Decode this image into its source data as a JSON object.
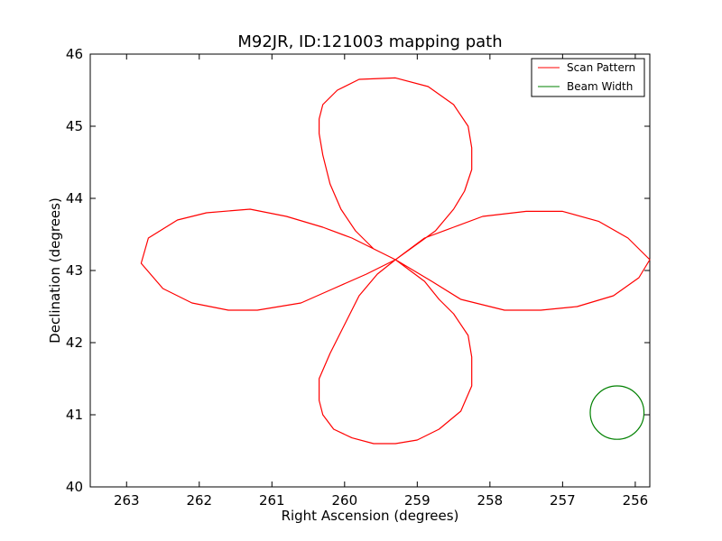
{
  "chart_data": {
    "type": "line",
    "title": "M92JR, ID:121003 mapping path",
    "xlabel": "Right Ascension (degrees)",
    "ylabel": "Declination (degrees)",
    "xlim": [
      263.5,
      255.8
    ],
    "ylim": [
      40,
      46
    ],
    "x_inverted": true,
    "xticks": [
      263,
      262,
      261,
      260,
      259,
      258,
      257,
      256
    ],
    "yticks": [
      40,
      41,
      42,
      43,
      44,
      45,
      46
    ],
    "grid": false,
    "legend_position": "top-right",
    "series": [
      {
        "name": "Scan Pattern",
        "color": "#ff0000",
        "kind": "line",
        "x": [
          259.3,
          259.6,
          259.85,
          260.05,
          260.2,
          260.3,
          260.35,
          260.35,
          260.3,
          260.1,
          259.8,
          259.3,
          258.85,
          258.5,
          258.3,
          258.25,
          258.25,
          258.35,
          258.5,
          258.75,
          259.3,
          259.7,
          260.15,
          260.6,
          261.2,
          261.6,
          262.1,
          262.5,
          262.8,
          262.7,
          262.3,
          261.9,
          261.3,
          260.8,
          260.3,
          259.9,
          259.3,
          258.9,
          258.5,
          258.1,
          257.5,
          257.0,
          256.5,
          256.1,
          255.8,
          255.95,
          256.3,
          256.8,
          257.3,
          257.8,
          258.4,
          258.8,
          259.3,
          259.55,
          259.8,
          260.0,
          260.2,
          260.35,
          260.35,
          260.3,
          260.15,
          259.9,
          259.6,
          259.3,
          259.0,
          258.7,
          258.4,
          258.25,
          258.25,
          258.3,
          258.5,
          258.7,
          258.9,
          259.3
        ],
        "y": [
          43.15,
          43.3,
          43.55,
          43.85,
          44.2,
          44.6,
          44.9,
          45.1,
          45.3,
          45.5,
          45.65,
          45.67,
          45.55,
          45.3,
          45.0,
          44.7,
          44.4,
          44.1,
          43.85,
          43.55,
          43.15,
          42.95,
          42.75,
          42.55,
          42.45,
          42.45,
          42.55,
          42.75,
          43.1,
          43.45,
          43.7,
          43.8,
          43.85,
          43.75,
          43.6,
          43.45,
          43.15,
          43.45,
          43.6,
          43.75,
          43.82,
          43.82,
          43.68,
          43.45,
          43.15,
          42.9,
          42.65,
          42.5,
          42.45,
          42.45,
          42.6,
          42.85,
          43.15,
          42.95,
          42.65,
          42.25,
          41.85,
          41.5,
          41.2,
          41.0,
          40.8,
          40.68,
          40.6,
          40.6,
          40.65,
          40.8,
          41.05,
          41.4,
          41.8,
          42.1,
          42.4,
          42.6,
          42.85,
          43.15
        ]
      },
      {
        "name": "Beam Width",
        "color": "#008000",
        "kind": "circle",
        "center": [
          256.25,
          41.03
        ],
        "radius": 0.37
      }
    ]
  }
}
